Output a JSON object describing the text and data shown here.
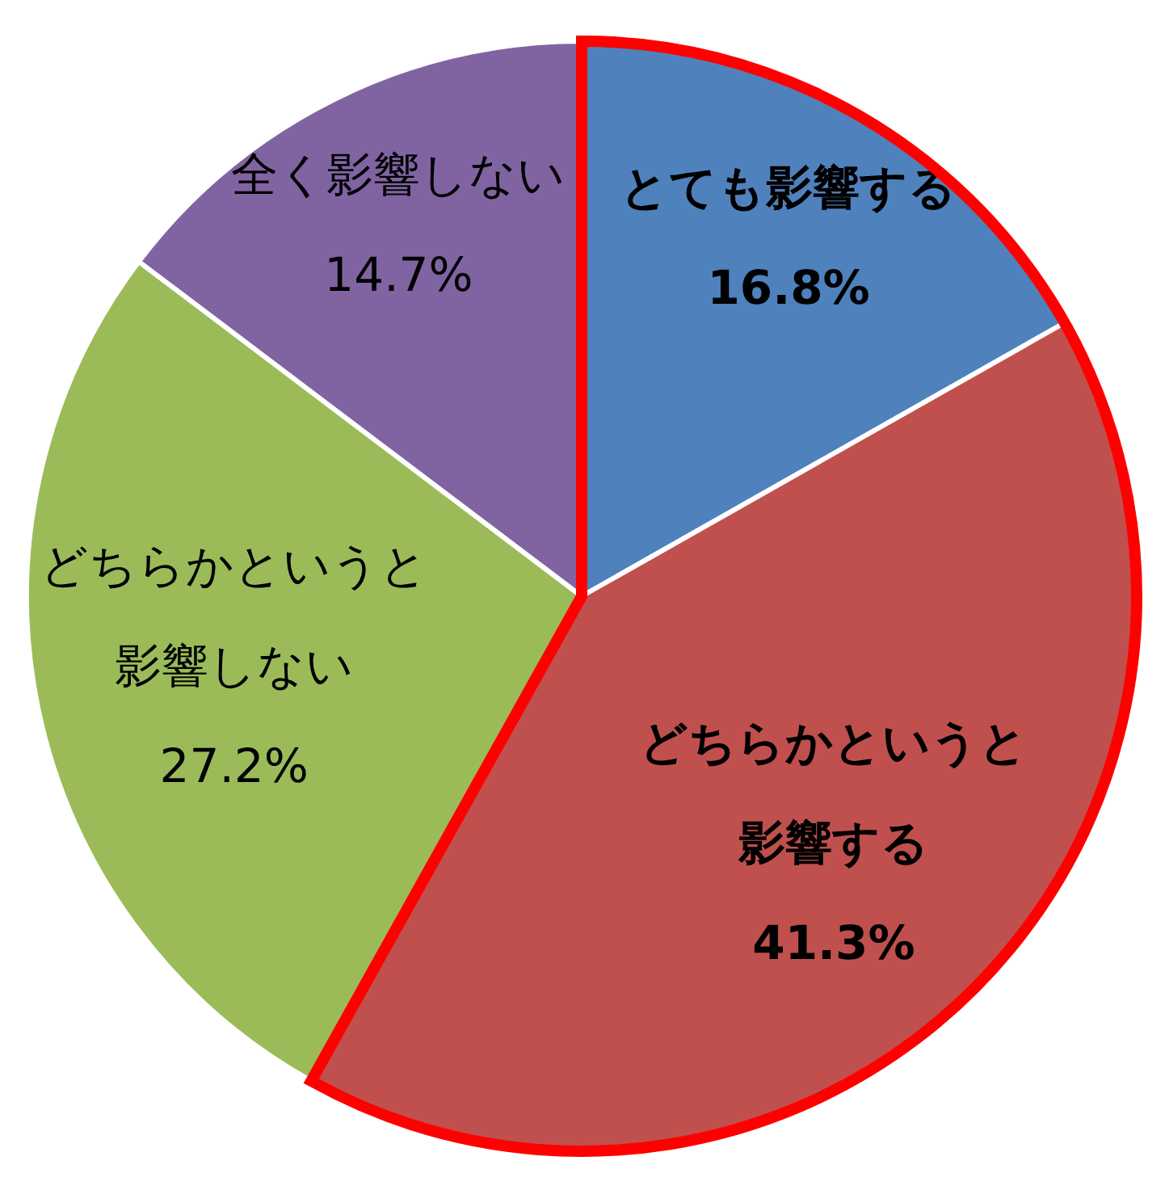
{
  "chart_data": {
    "type": "pie",
    "categories": [
      "とても影響する",
      "どちらかというと影響する",
      "どちらかというと影響しない",
      "全く影響しない"
    ],
    "values": [
      16.8,
      41.3,
      27.2,
      14.7
    ],
    "value_labels": [
      "16.8%",
      "41.3%",
      "27.2%",
      "14.7%"
    ],
    "colors": [
      "#4f81bd",
      "#c0504d",
      "#9bbb59",
      "#8064a2"
    ],
    "legend": false
  }
}
